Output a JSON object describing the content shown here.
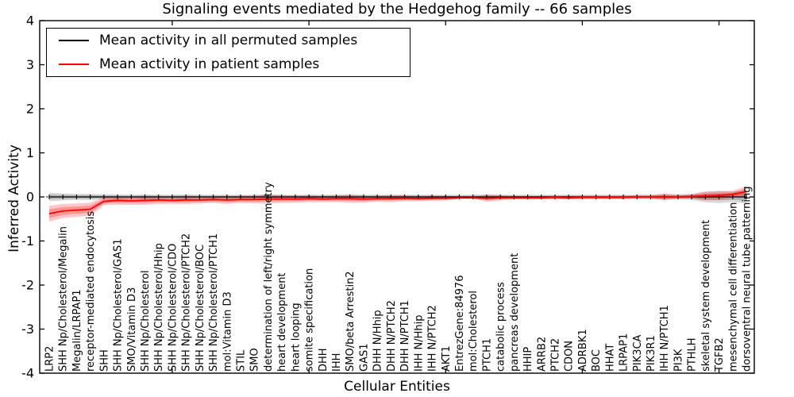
{
  "figure": {
    "title": "Signaling events mediated by the Hedgehog family -- 66 samples",
    "xlabel": "Cellular Entities",
    "ylabel": "Inferred Activity"
  },
  "legend": {
    "entries": [
      {
        "label": "Mean activity in all permuted samples",
        "color": "#000000"
      },
      {
        "label": "Mean activity in patient samples",
        "color": "#ff0000"
      }
    ],
    "position": "upper left"
  },
  "chart_data": {
    "type": "line",
    "title": "Signaling events mediated by the Hedgehog family -- 66 samples",
    "xlabel": "Cellular Entities",
    "ylabel": "Inferred Activity",
    "ylim": [
      -4,
      4
    ],
    "yticks": [
      -4,
      -3,
      -2,
      -1,
      0,
      1,
      2,
      3,
      4
    ],
    "x_major_tick_indices": [
      9,
      19,
      29,
      39,
      49
    ],
    "grid": false,
    "zero_line": true,
    "legend_position": "upper left",
    "categories": [
      "LRP2",
      "SHH Np/Cholesterol/Megalin",
      "Megalin/LRPAP1",
      "receptor-mediated endocytosis",
      "SHH",
      "SHH Np/Cholesterol/GAS1",
      "SMO/Vitamin D3",
      "SHH Np/Cholesterol",
      "SHH Np/Cholesterol/Hhip",
      "SHH Np/Cholesterol/CDO",
      "SHH Np/Cholesterol/PTCH2",
      "SHH Np/Cholesterol/BOC",
      "SHH Np/Cholesterol/PTCH1",
      "mol:Vitamin D3",
      "STIL",
      "SMO",
      "determination of left/right symmetry",
      "heart development",
      "heart looping",
      "somite specification",
      "DHH",
      "IHH",
      "SMO/beta Arrestin2",
      "GAS1",
      "DHH N/Hhip",
      "DHH N/PTCH2",
      "DHH N/PTCH1",
      "IHH N/Hhip",
      "IHH N/PTCH2",
      "AKT1",
      "EntrezGene:84976",
      "mol:Cholesterol",
      "PTCH1",
      "catabolic process",
      "pancreas development",
      "HHIP",
      "ARRB2",
      "PTCH2",
      "CDON",
      "ADRBK1",
      "BOC",
      "HHAT",
      "LRPAP1",
      "PIK3CA",
      "PIK3R1",
      "IHH N/PTCH1",
      "PI3K",
      "PTHLH",
      "skeletal system development",
      "TGFB2",
      "mesenchymal cell differentiation",
      "dorsoventral neural tube patterning"
    ],
    "series": [
      {
        "name": "Mean activity in all permuted samples",
        "color": "#000000",
        "band_color": "#000000",
        "band_opacity": 0.15,
        "values": [
          0,
          0,
          0,
          0,
          0,
          0,
          0,
          0,
          0,
          0,
          0,
          0,
          0,
          0,
          0,
          0,
          0,
          0,
          0,
          0,
          0,
          0,
          0,
          0,
          0,
          0,
          0,
          0,
          0,
          0,
          0,
          0,
          0,
          0,
          0,
          0,
          0,
          0,
          0,
          0,
          0,
          0,
          0,
          0,
          0,
          0,
          0,
          0,
          0,
          0,
          0,
          0
        ],
        "band": [
          0.1,
          0.08,
          0.07,
          0.07,
          0.06,
          0.06,
          0.05,
          0.06,
          0.05,
          0.05,
          0.06,
          0.05,
          0.05,
          0.05,
          0.05,
          0.05,
          0.06,
          0.05,
          0.05,
          0.05,
          0.05,
          0.05,
          0.06,
          0.05,
          0.05,
          0.05,
          0.05,
          0.05,
          0.05,
          0.05,
          0.05,
          0.05,
          0.06,
          0.05,
          0.05,
          0.05,
          0.05,
          0.05,
          0.05,
          0.05,
          0.05,
          0.05,
          0.05,
          0.05,
          0.05,
          0.06,
          0.06,
          0.07,
          0.12,
          0.14,
          0.12,
          0.15
        ]
      },
      {
        "name": "Mean activity in patient samples",
        "color": "#ff0000",
        "band_color": "#ff0000",
        "band_opacity": 0.22,
        "values": [
          -0.38,
          -0.32,
          -0.3,
          -0.28,
          -0.1,
          -0.08,
          -0.09,
          -0.08,
          -0.07,
          -0.08,
          -0.07,
          -0.07,
          -0.06,
          -0.07,
          -0.06,
          -0.06,
          -0.05,
          -0.05,
          -0.05,
          -0.04,
          -0.05,
          -0.04,
          -0.04,
          -0.05,
          -0.04,
          -0.04,
          -0.03,
          -0.04,
          -0.03,
          -0.03,
          -0.02,
          -0.02,
          -0.03,
          -0.02,
          -0.02,
          -0.02,
          -0.02,
          -0.01,
          -0.02,
          -0.01,
          -0.01,
          -0.01,
          -0.01,
          0.0,
          0.0,
          0.0,
          0.0,
          0.01,
          0.02,
          0.03,
          0.06,
          0.12
        ],
        "band": [
          0.18,
          0.16,
          0.15,
          0.15,
          0.09,
          0.1,
          0.09,
          0.1,
          0.09,
          0.08,
          0.09,
          0.08,
          0.08,
          0.09,
          0.08,
          0.09,
          0.1,
          0.09,
          0.08,
          0.08,
          0.07,
          0.08,
          0.09,
          0.08,
          0.07,
          0.08,
          0.07,
          0.06,
          0.06,
          0.05,
          0.03,
          0.02,
          0.08,
          0.06,
          0.04,
          0.04,
          0.04,
          0.04,
          0.04,
          0.04,
          0.04,
          0.04,
          0.04,
          0.04,
          0.04,
          0.08,
          0.04,
          0.05,
          0.1,
          0.1,
          0.08,
          0.12
        ]
      }
    ]
  }
}
